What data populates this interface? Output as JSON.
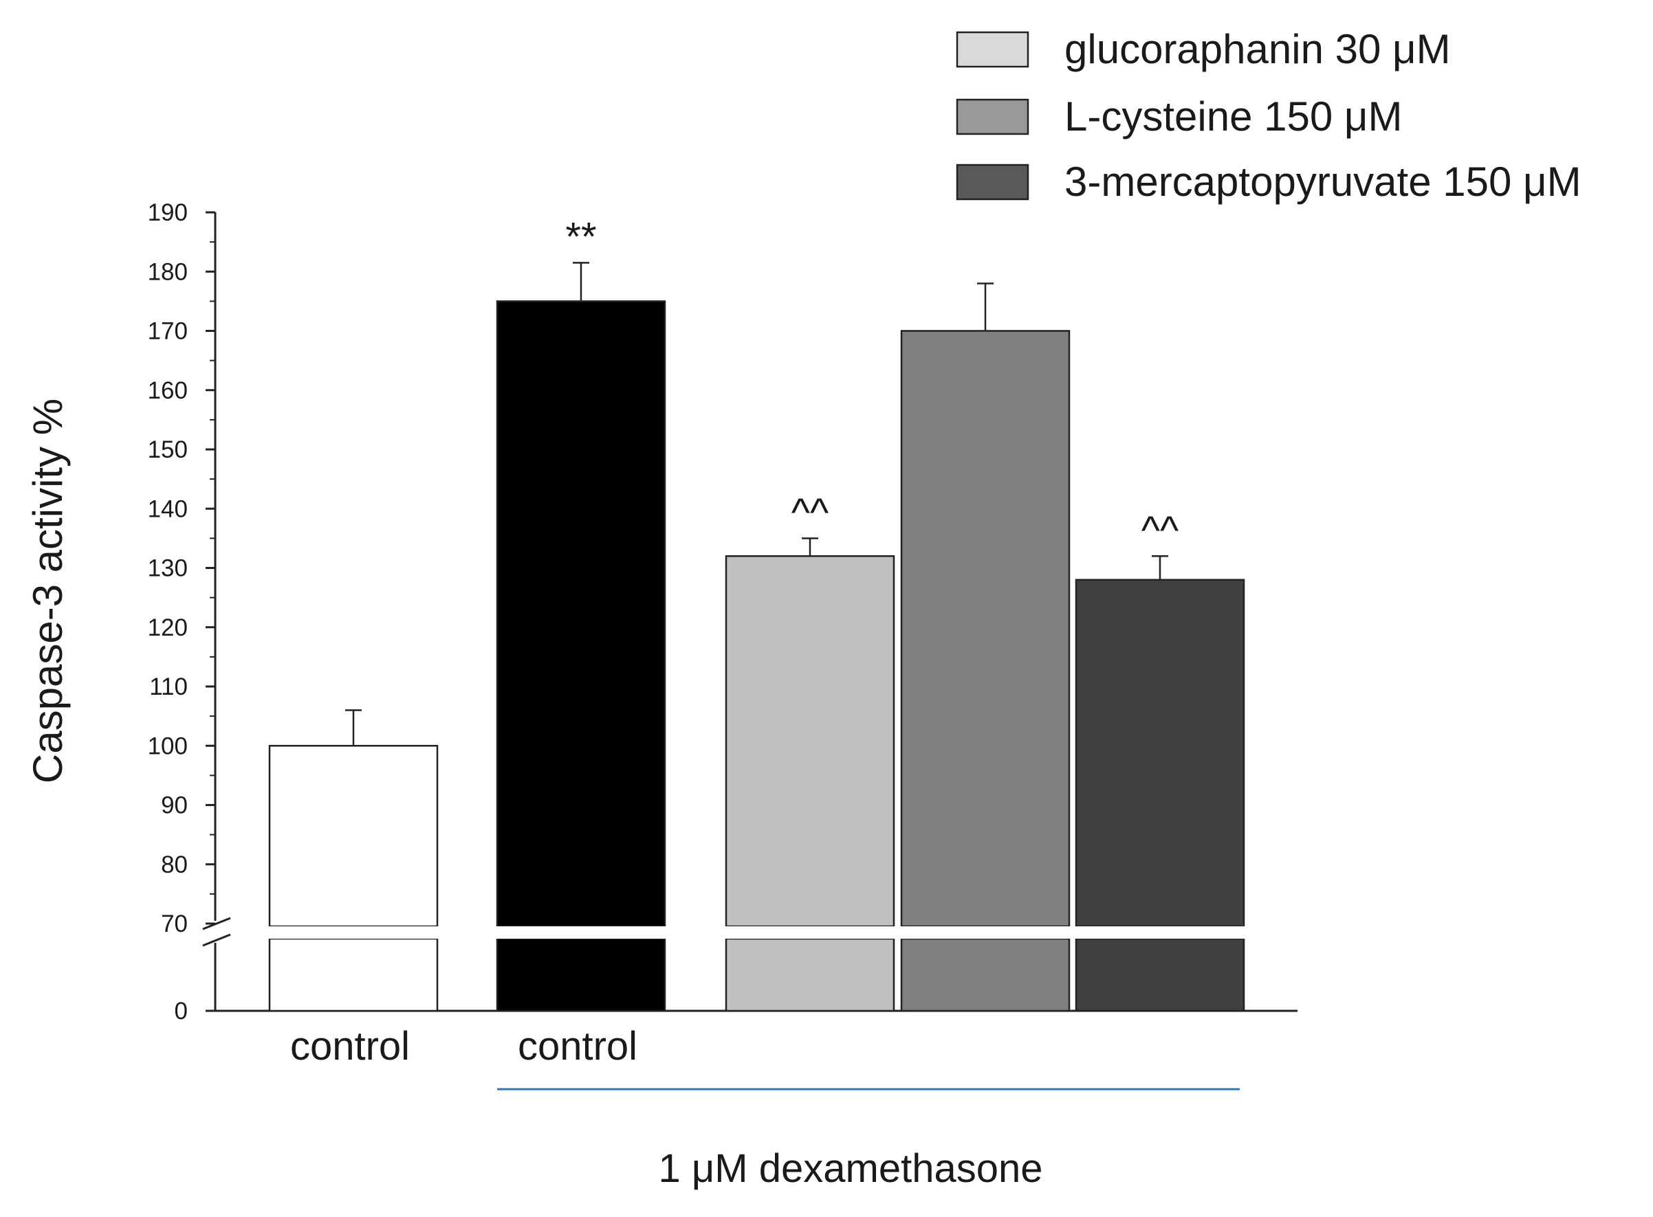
{
  "chart_data": {
    "type": "bar",
    "ylabel": "Caspase-3 activity %",
    "y_axis": {
      "broken": true,
      "lower_segment": [
        0,
        70
      ],
      "upper_segment": [
        70,
        190
      ],
      "ticks": [
        0,
        70,
        80,
        90,
        100,
        110,
        120,
        130,
        140,
        150,
        160,
        170,
        180,
        190
      ]
    },
    "bars": [
      {
        "label": "control",
        "value": 100,
        "error": 6,
        "annotation": "",
        "color": "#ffffff",
        "group": ""
      },
      {
        "label": "control",
        "value": 175,
        "error": 6.5,
        "annotation": "**",
        "color": "#000000",
        "group": "dexamethasone"
      },
      {
        "label": "",
        "value": 132,
        "error": 3,
        "annotation": "^^",
        "color": "#c0c0c0",
        "group": "dexamethasone"
      },
      {
        "label": "",
        "value": 170,
        "error": 8,
        "annotation": "",
        "color": "#808080",
        "group": "dexamethasone"
      },
      {
        "label": "",
        "value": 128,
        "error": 4,
        "annotation": "^^",
        "color": "#404040",
        "group": "dexamethasone"
      }
    ],
    "legend": {
      "placement": "top-right",
      "entries": [
        {
          "label": "glucoraphanin 30 μM",
          "color": "#d9d9d9"
        },
        {
          "label": "L-cysteine 150 μM",
          "color": "#999999"
        },
        {
          "label": "3-mercaptopyruvate 150 μM",
          "color": "#595959"
        }
      ]
    },
    "group_label": "1 μM dexamethasone",
    "group_line_color": "#2e75b6",
    "grid": false
  }
}
